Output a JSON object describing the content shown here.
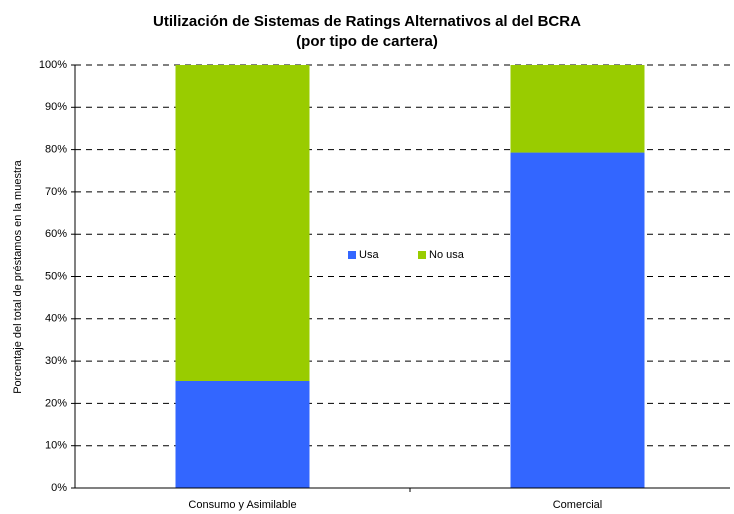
{
  "chart_data": {
    "type": "stacked_bar",
    "title": "Utilización de Sistemas de Ratings Alternativos al del BCRA",
    "subtitle": "(por tipo de cartera)",
    "y_label": "Porcentaje del total de préstamos en la muestra",
    "categories": [
      "Consumo y Asimilable",
      "Comercial"
    ],
    "series": [
      {
        "name": "Usa",
        "color": "#3366ff",
        "values": [
          25.3,
          79.3
        ]
      },
      {
        "name": "No usa",
        "color": "#99cc00",
        "values": [
          74.7,
          20.7
        ]
      }
    ],
    "ylim": [
      0,
      100
    ],
    "yticks": [
      {
        "value": 0,
        "label": "0%"
      },
      {
        "value": 10,
        "label": "10%"
      },
      {
        "value": 20,
        "label": "20%"
      },
      {
        "value": 30,
        "label": "30%"
      },
      {
        "value": 40,
        "label": "40%"
      },
      {
        "value": 50,
        "label": "50%"
      },
      {
        "value": 60,
        "label": "60%"
      },
      {
        "value": 70,
        "label": "70%"
      },
      {
        "value": 80,
        "label": "80%"
      },
      {
        "value": 90,
        "label": "90%"
      },
      {
        "value": 100,
        "label": "100%"
      }
    ],
    "grid": true,
    "legend": "center"
  }
}
